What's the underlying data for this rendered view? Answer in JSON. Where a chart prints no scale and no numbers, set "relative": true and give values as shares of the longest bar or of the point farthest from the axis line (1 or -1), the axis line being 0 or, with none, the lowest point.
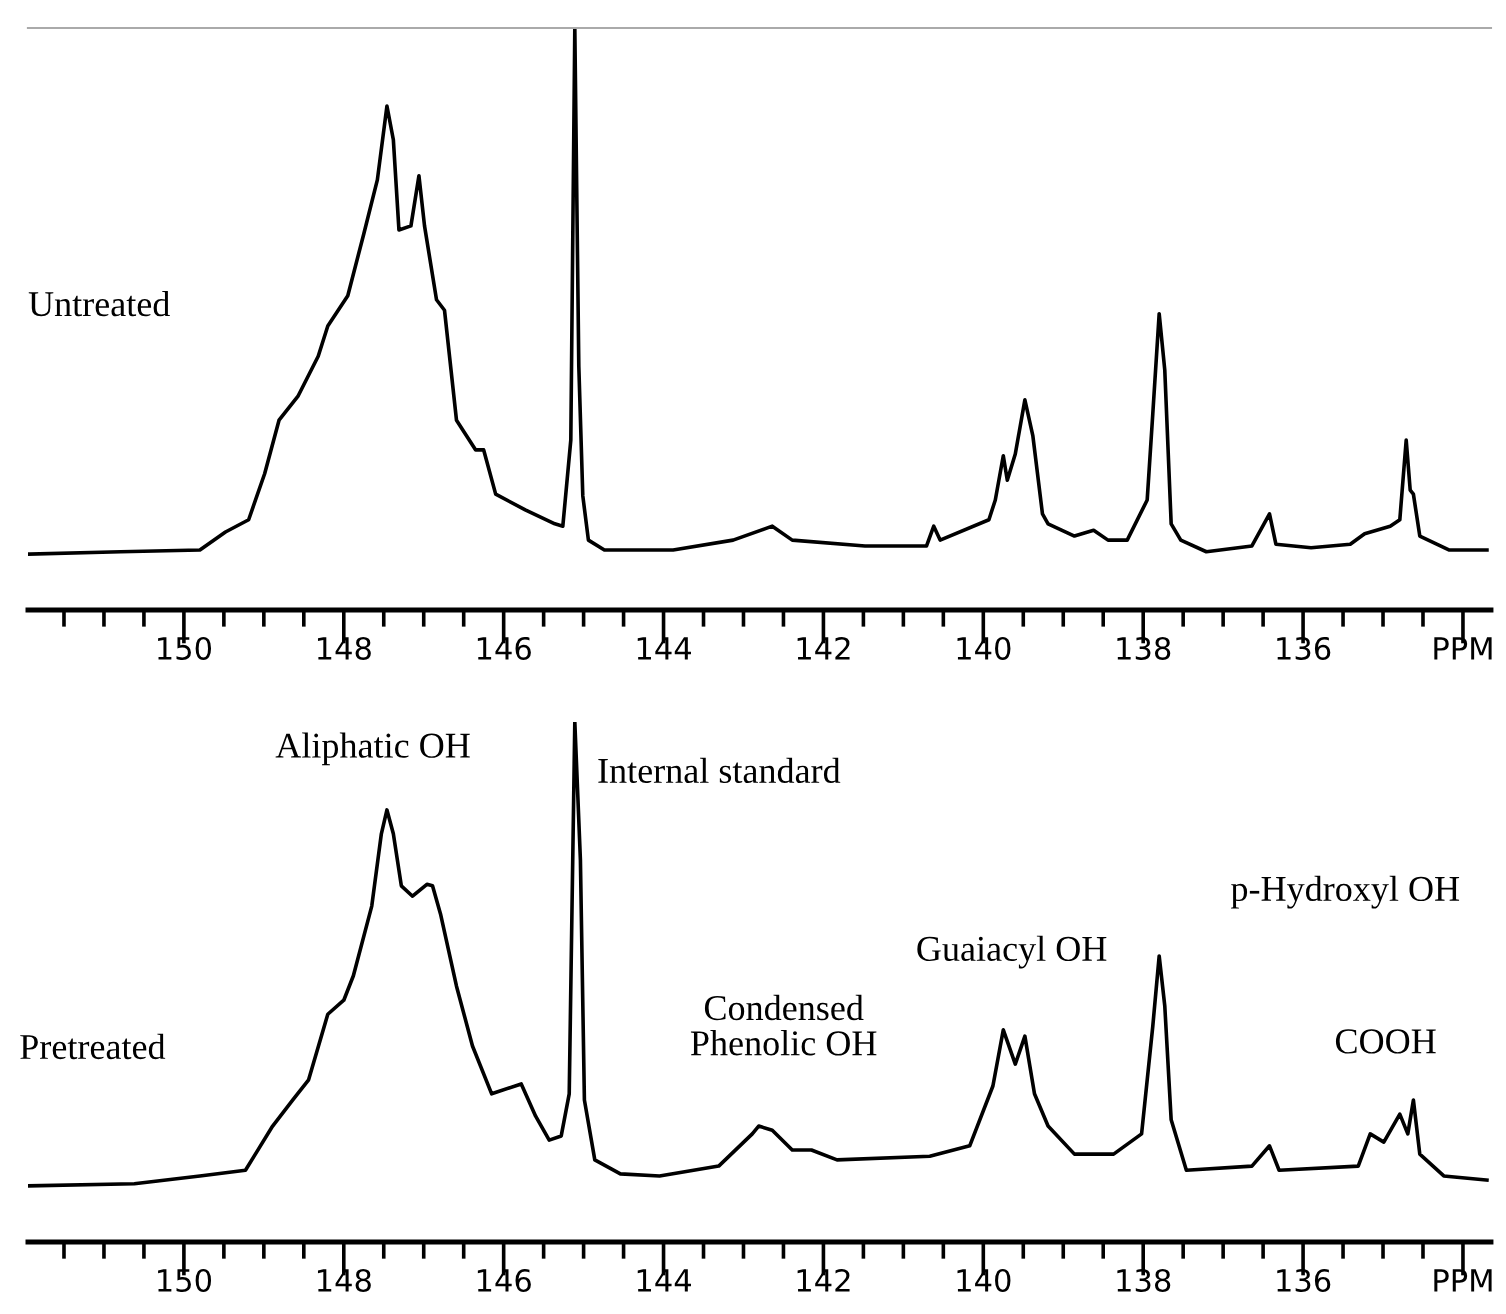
{
  "chart_data": [
    {
      "type": "line",
      "title": "Untreated",
      "relative": true,
      "tick_labels": "x",
      "color": "#000000",
      "x": [
        151.93,
        150.79,
        149.8,
        149.48,
        149.19,
        148.99,
        148.81,
        148.57,
        148.32,
        148.2,
        147.95,
        147.75,
        147.58,
        147.46,
        147.38,
        147.31,
        147.16,
        147.06,
        146.99,
        146.84,
        146.74,
        146.59,
        146.35,
        146.25,
        146.1,
        145.73,
        145.36,
        145.26,
        145.16,
        145.11,
        145.06,
        145.01,
        144.94,
        144.74,
        143.88,
        143.13,
        142.64,
        142.39,
        141.48,
        140.71,
        140.62,
        140.54,
        139.93,
        139.85,
        139.75,
        139.7,
        139.6,
        139.48,
        139.38,
        139.26,
        139.19,
        138.86,
        138.62,
        138.44,
        138.2,
        137.95,
        137.88,
        137.8,
        137.73,
        137.65,
        137.53,
        137.21,
        136.64,
        136.42,
        136.34,
        135.9,
        135.41,
        135.23,
        134.91,
        134.79,
        134.71,
        134.66,
        134.62,
        134.54,
        134.17,
        133.7
      ],
      "values": [
        0.096,
        0.1,
        0.103,
        0.134,
        0.155,
        0.234,
        0.326,
        0.368,
        0.436,
        0.488,
        0.54,
        0.646,
        0.739,
        0.866,
        0.808,
        0.653,
        0.66,
        0.746,
        0.66,
        0.533,
        0.515,
        0.326,
        0.275,
        0.275,
        0.199,
        0.172,
        0.148,
        0.144,
        0.292,
        1.0,
        0.419,
        0.196,
        0.12,
        0.103,
        0.103,
        0.12,
        0.144,
        0.12,
        0.11,
        0.11,
        0.144,
        0.12,
        0.155,
        0.189,
        0.265,
        0.223,
        0.268,
        0.361,
        0.299,
        0.165,
        0.148,
        0.127,
        0.137,
        0.12,
        0.12,
        0.189,
        0.337,
        0.509,
        0.412,
        0.148,
        0.12,
        0.1,
        0.11,
        0.165,
        0.113,
        0.107,
        0.113,
        0.131,
        0.144,
        0.155,
        0.292,
        0.206,
        0.199,
        0.127,
        0.103,
        0.103
      ],
      "xlim": [
        151.95,
        133.65
      ],
      "xticks": [
        {
          "value": 151.5,
          "label": null
        },
        {
          "value": 151,
          "label": null
        },
        {
          "value": 150.5,
          "label": null
        },
        150,
        {
          "value": 149.5,
          "label": null
        },
        {
          "value": 149,
          "label": null
        },
        {
          "value": 148.5,
          "label": null
        },
        148,
        {
          "value": 147.5,
          "label": null
        },
        {
          "value": 147,
          "label": null
        },
        {
          "value": 146.5,
          "label": null
        },
        146,
        {
          "value": 145.5,
          "label": null
        },
        {
          "value": 145,
          "label": null
        },
        {
          "value": 144.5,
          "label": null
        },
        144,
        {
          "value": 143.5,
          "label": null
        },
        {
          "value": 143,
          "label": null
        },
        {
          "value": 142.5,
          "label": null
        },
        142,
        {
          "value": 141.5,
          "label": null
        },
        {
          "value": 141,
          "label": null
        },
        {
          "value": 140.5,
          "label": null
        },
        140,
        {
          "value": 139.5,
          "label": null
        },
        {
          "value": 139,
          "label": null
        },
        {
          "value": 138.5,
          "label": null
        },
        138,
        {
          "value": 137.5,
          "label": null
        },
        {
          "value": 137,
          "label": null
        },
        {
          "value": 136.5,
          "label": null
        },
        136,
        {
          "value": 135.5,
          "label": null
        },
        {
          "value": 135,
          "label": null
        },
        {
          "value": 134.5,
          "label": null
        },
        {
          "value": 134,
          "label": "PPM"
        }
      ]
    },
    {
      "type": "line",
      "title": "Pretreated",
      "relative": true,
      "tick_labels": "x",
      "color": "#000000",
      "x": [
        151.95,
        150.62,
        149.8,
        149.23,
        148.89,
        148.64,
        148.44,
        148.2,
        148.0,
        147.88,
        147.65,
        147.53,
        147.46,
        147.38,
        147.28,
        147.14,
        146.96,
        146.89,
        146.79,
        146.59,
        146.39,
        146.15,
        145.78,
        145.6,
        145.43,
        145.28,
        145.18,
        145.11,
        145.04,
        144.99,
        144.86,
        144.54,
        144.05,
        143.31,
        142.89,
        142.81,
        142.64,
        142.39,
        142.15,
        141.83,
        140.67,
        140.17,
        139.88,
        139.75,
        139.6,
        139.48,
        139.36,
        139.19,
        138.86,
        138.37,
        138.02,
        137.88,
        137.8,
        137.73,
        137.65,
        137.46,
        136.64,
        136.42,
        136.3,
        135.31,
        135.16,
        134.99,
        134.79,
        134.69,
        134.62,
        134.54,
        134.24,
        133.7
      ],
      "values": [
        0.108,
        0.112,
        0.127,
        0.138,
        0.223,
        0.273,
        0.312,
        0.438,
        0.465,
        0.512,
        0.646,
        0.785,
        0.831,
        0.785,
        0.685,
        0.665,
        0.688,
        0.685,
        0.631,
        0.492,
        0.377,
        0.285,
        0.304,
        0.242,
        0.196,
        0.204,
        0.285,
        1.0,
        0.735,
        0.273,
        0.158,
        0.131,
        0.127,
        0.146,
        0.208,
        0.223,
        0.215,
        0.177,
        0.177,
        0.158,
        0.165,
        0.185,
        0.3,
        0.408,
        0.342,
        0.396,
        0.285,
        0.223,
        0.169,
        0.169,
        0.208,
        0.415,
        0.55,
        0.454,
        0.235,
        0.138,
        0.146,
        0.185,
        0.138,
        0.146,
        0.208,
        0.192,
        0.246,
        0.208,
        0.273,
        0.169,
        0.127,
        0.119
      ],
      "xlim": [
        151.95,
        133.65
      ],
      "xticks": [
        {
          "value": 151.5,
          "label": null
        },
        {
          "value": 151,
          "label": null
        },
        {
          "value": 150.5,
          "label": null
        },
        150,
        {
          "value": 149.5,
          "label": null
        },
        {
          "value": 149,
          "label": null
        },
        {
          "value": 148.5,
          "label": null
        },
        148,
        {
          "value": 147.5,
          "label": null
        },
        {
          "value": 147,
          "label": null
        },
        {
          "value": 146.5,
          "label": null
        },
        146,
        {
          "value": 145.5,
          "label": null
        },
        {
          "value": 145,
          "label": null
        },
        {
          "value": 144.5,
          "label": null
        },
        144,
        {
          "value": 143.5,
          "label": null
        },
        {
          "value": 143,
          "label": null
        },
        {
          "value": 142.5,
          "label": null
        },
        142,
        {
          "value": 141.5,
          "label": null
        },
        {
          "value": 141,
          "label": null
        },
        {
          "value": 140.5,
          "label": null
        },
        140,
        {
          "value": 139.5,
          "label": null
        },
        {
          "value": 139,
          "label": null
        },
        {
          "value": 138.5,
          "label": null
        },
        138,
        {
          "value": 137.5,
          "label": null
        },
        {
          "value": 137,
          "label": null
        },
        {
          "value": 136.5,
          "label": null
        },
        136,
        {
          "value": 135.5,
          "label": null
        },
        {
          "value": 135,
          "label": null
        },
        {
          "value": 134.5,
          "label": null
        },
        {
          "value": 134,
          "label": "PPM"
        }
      ],
      "annotations": [
        {
          "text": "Aliphatic OH",
          "x": 147.46,
          "y": 0.831
        },
        {
          "text": "Internal standard",
          "x": 145.11,
          "y": 0.9
        },
        {
          "text": "Condensed\nPhenolic OH",
          "x": 142.81,
          "y": 0.223
        },
        {
          "text": "Guaiacyl OH",
          "x": 139.75,
          "y": 0.408
        },
        {
          "text": "p-Hydroxyl OH",
          "x": 137.8,
          "y": 0.55
        },
        {
          "text": "COOH",
          "x": 134.62,
          "y": 0.273
        }
      ]
    }
  ]
}
